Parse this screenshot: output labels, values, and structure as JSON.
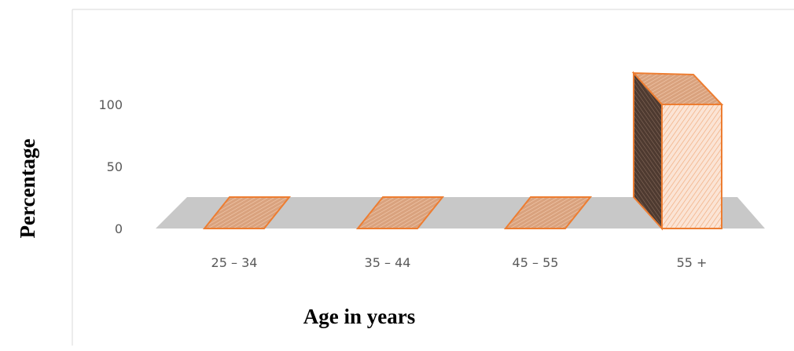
{
  "chart_data": {
    "type": "bar",
    "style": "3d-column",
    "categories": [
      "25 – 34",
      "35 – 44",
      "45 – 55",
      "55 +"
    ],
    "values": [
      0,
      0,
      0,
      100
    ],
    "xlabel": "Age in years",
    "ylabel": "Percentage",
    "yticks": [
      "0",
      "50",
      "100"
    ],
    "ylim": [
      0,
      100
    ],
    "grid": false,
    "legend": "none",
    "colors": {
      "bar_front": "#fbe4d5",
      "bar_side": "#5a4438",
      "bar_outline": "#ed7d31",
      "floor": "#c8c8c8",
      "frame": "#d9d9d9"
    }
  }
}
